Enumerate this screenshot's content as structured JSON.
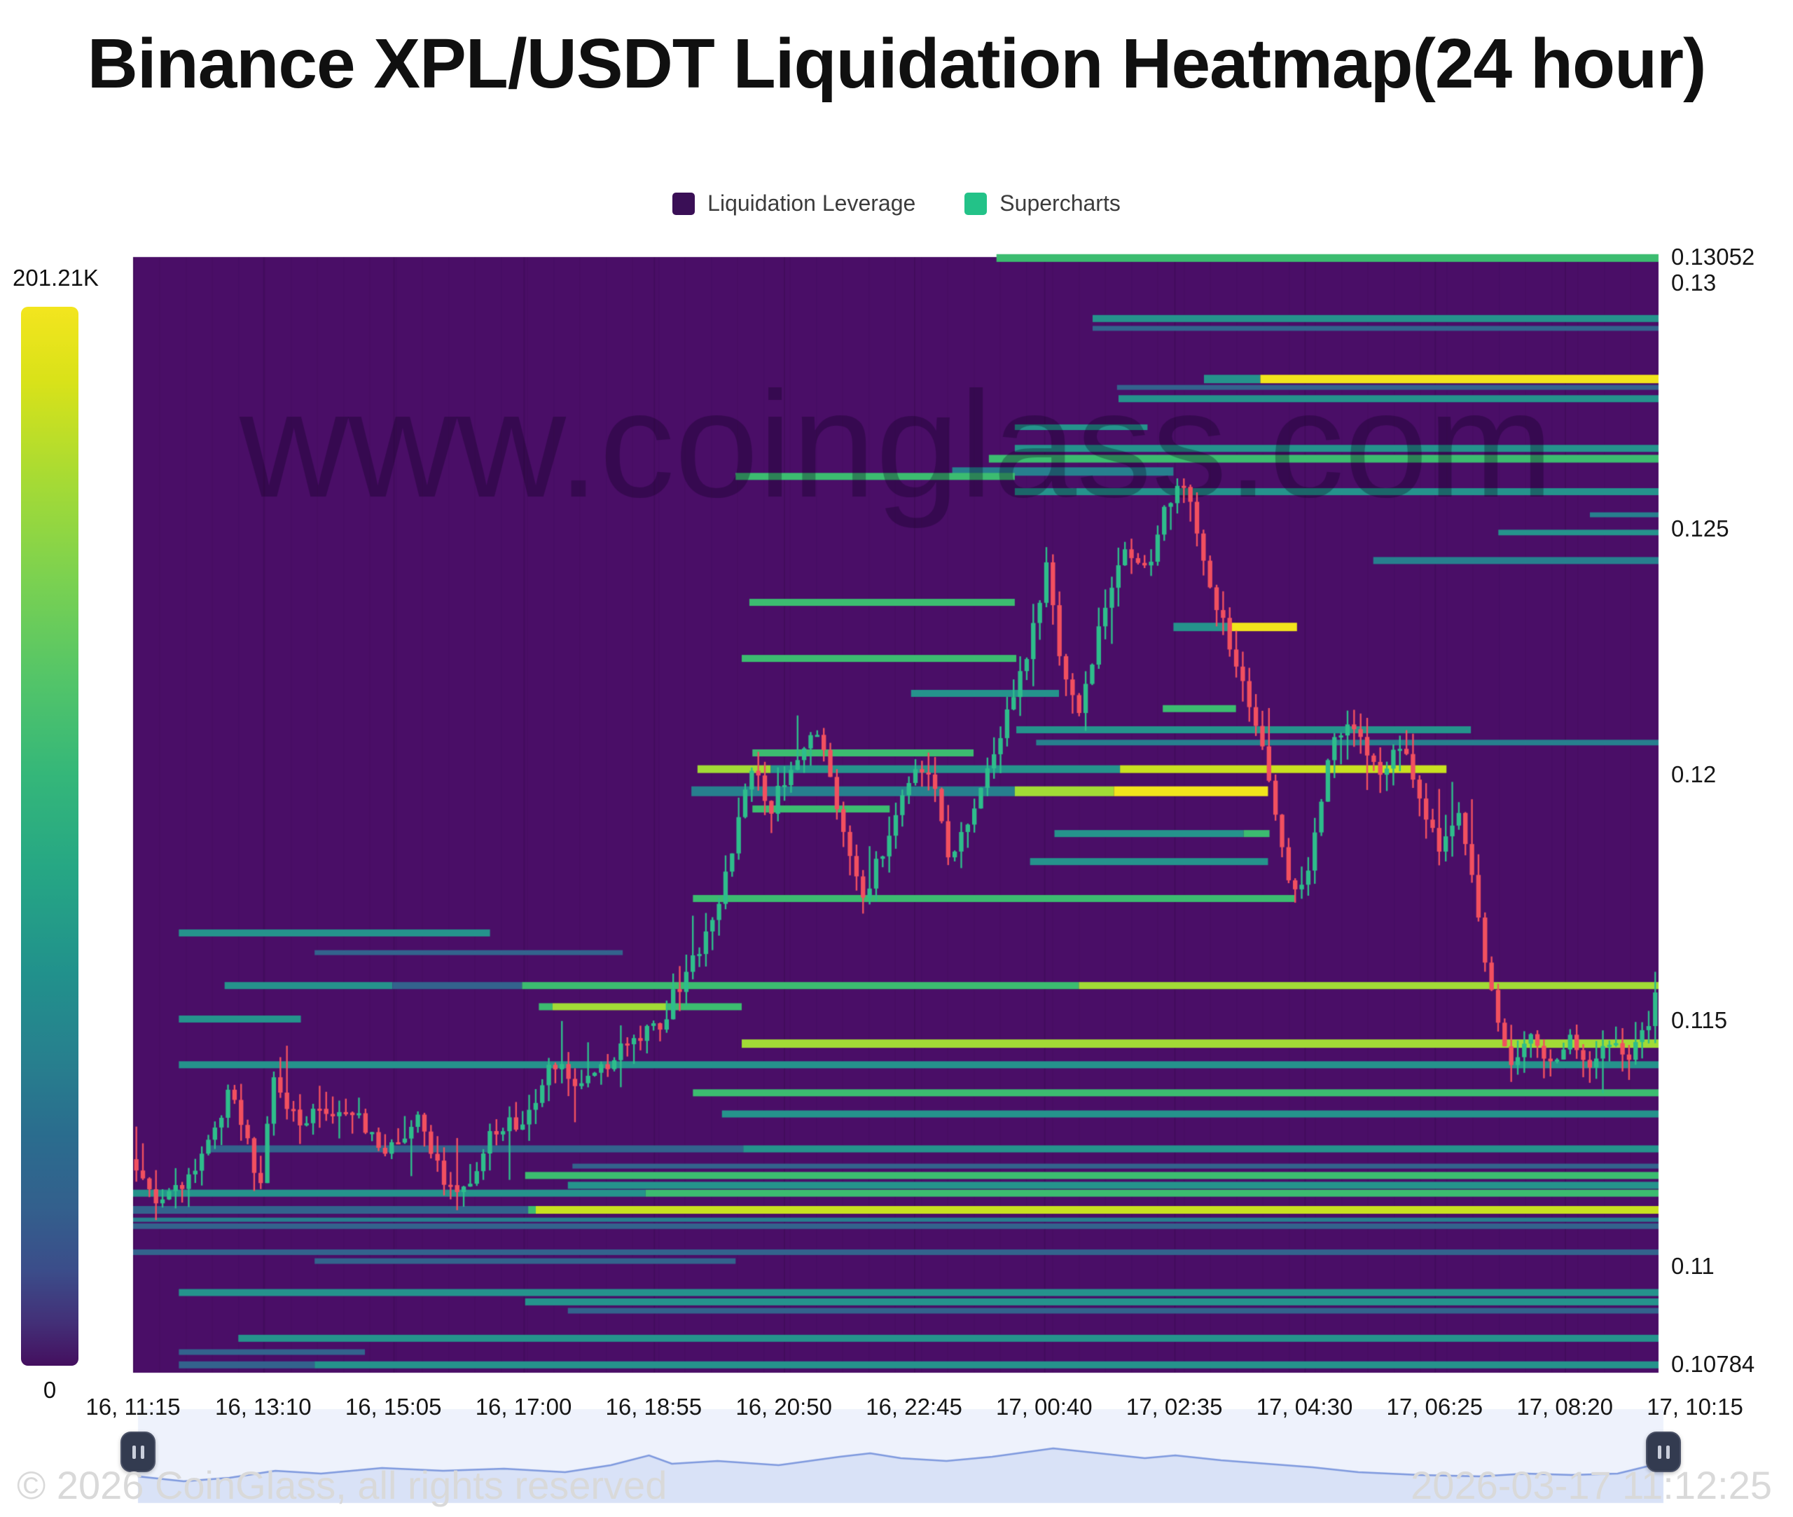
{
  "header": {
    "title": "Binance XPL/USDT Liquidation Heatmap(24 hour)"
  },
  "legend": {
    "items": [
      {
        "label": "Liquidation Leverage",
        "color": "#3a0f56"
      },
      {
        "label": "Supercharts",
        "color": "#23c288"
      }
    ]
  },
  "colorbar": {
    "max_label": "201.21K",
    "min_label": "0"
  },
  "watermark": "www.coinglass.com",
  "footer": {
    "left": "© 2026 CoinGlass, all rights reserved",
    "right": "2026-03-17 11:12:25"
  },
  "chart_data": {
    "type": "heatmap",
    "title": "Binance XPL/USDT Liquidation Heatmap(24 hour)",
    "background": "#4a0e67",
    "grid_line_color": "rgba(0,0,0,0.10)",
    "candle_up_color": "#2ebd8b",
    "candle_down_color": "#f2505f",
    "watermark_color": "rgba(10,0,25,0.30)",
    "y_axis": {
      "min": 0.10784,
      "max": 0.13052,
      "ticks": [
        {
          "label": "0.13052",
          "value": 0.13052
        },
        {
          "label": "0.13",
          "value": 0.13
        },
        {
          "label": "0.125",
          "value": 0.125
        },
        {
          "label": "0.12",
          "value": 0.12
        },
        {
          "label": "0.115",
          "value": 0.115
        },
        {
          "label": "0.11",
          "value": 0.11
        },
        {
          "label": "0.10784",
          "value": 0.10784
        }
      ]
    },
    "x_axis": {
      "ticks": [
        "16, 11:15",
        "16, 13:10",
        "16, 15:05",
        "16, 17:00",
        "16, 18:55",
        "16, 20:50",
        "16, 22:45",
        "17, 00:40",
        "17, 02:35",
        "17, 04:30",
        "17, 06:25",
        "17, 08:20",
        "17, 10:15"
      ]
    },
    "colorbar": {
      "min": 0,
      "max_label": "201.21K"
    },
    "palette": {
      "blue": "#33638d",
      "dteal": "#277f8e",
      "teal": "#25938c",
      "green": "#3cbc70",
      "lgreen": "#a2db36",
      "ygreen": "#c9e120",
      "yellow": "#f2e41c"
    },
    "liquidation_lines": [
      {
        "p": 0.1305,
        "h": 11,
        "s": [
          [
            0.566,
            1,
            "green"
          ]
        ]
      },
      {
        "p": 0.12927,
        "h": 10,
        "s": [
          [
            0.629,
            1,
            "teal"
          ]
        ]
      },
      {
        "p": 0.12907,
        "h": 7,
        "s": [
          [
            0.629,
            1,
            "blue"
          ]
        ]
      },
      {
        "p": 0.12804,
        "h": 12,
        "s": [
          [
            0.702,
            0.739,
            "teal"
          ],
          [
            0.739,
            1,
            "yellow"
          ]
        ]
      },
      {
        "p": 0.12787,
        "h": 7,
        "s": [
          [
            0.645,
            1,
            "blue"
          ]
        ]
      },
      {
        "p": 0.12764,
        "h": 10,
        "s": [
          [
            0.646,
            1,
            "teal"
          ]
        ]
      },
      {
        "p": 0.12706,
        "h": 8,
        "s": [
          [
            0.578,
            0.665,
            "teal"
          ]
        ]
      },
      {
        "p": 0.12663,
        "h": 10,
        "s": [
          [
            0.578,
            1,
            "teal"
          ]
        ]
      },
      {
        "p": 0.12642,
        "h": 11,
        "s": [
          [
            0.561,
            1,
            "green"
          ]
        ]
      },
      {
        "p": 0.12616,
        "h": 12,
        "s": [
          [
            0.537,
            0.682,
            "dteal"
          ]
        ]
      },
      {
        "p": 0.12606,
        "h": 10,
        "s": [
          [
            0.395,
            0.578,
            "green"
          ]
        ]
      },
      {
        "p": 0.12575,
        "h": 10,
        "s": [
          [
            0.578,
            1,
            "teal"
          ]
        ]
      },
      {
        "p": 0.12528,
        "h": 7,
        "s": [
          [
            0.955,
            1,
            "dteal"
          ]
        ]
      },
      {
        "p": 0.12492,
        "h": 8,
        "s": [
          [
            0.895,
            1,
            "teal"
          ]
        ]
      },
      {
        "p": 0.12435,
        "h": 10,
        "s": [
          [
            0.813,
            1,
            "dteal"
          ]
        ]
      },
      {
        "p": 0.1235,
        "h": 10,
        "s": [
          [
            0.404,
            0.578,
            "green"
          ]
        ]
      },
      {
        "p": 0.123,
        "h": 12,
        "s": [
          [
            0.682,
            0.719,
            "teal"
          ],
          [
            0.719,
            0.763,
            "yellow"
          ]
        ]
      },
      {
        "p": 0.12236,
        "h": 10,
        "s": [
          [
            0.399,
            0.579,
            "green"
          ]
        ]
      },
      {
        "p": 0.12165,
        "h": 10,
        "s": [
          [
            0.51,
            0.607,
            "teal"
          ]
        ]
      },
      {
        "p": 0.12134,
        "h": 10,
        "s": [
          [
            0.675,
            0.723,
            "green"
          ]
        ]
      },
      {
        "p": 0.12091,
        "h": 10,
        "s": [
          [
            0.579,
            0.877,
            "teal"
          ]
        ]
      },
      {
        "p": 0.12065,
        "h": 8,
        "s": [
          [
            0.592,
            1,
            "dteal"
          ]
        ]
      },
      {
        "p": 0.12044,
        "h": 10,
        "s": [
          [
            0.406,
            0.551,
            "green"
          ]
        ]
      },
      {
        "p": 0.12011,
        "h": 11,
        "s": [
          [
            0.37,
            0.418,
            "lgreen"
          ],
          [
            0.418,
            0.647,
            "teal"
          ],
          [
            0.647,
            0.861,
            "ygreen"
          ]
        ]
      },
      {
        "p": 0.11966,
        "h": 14,
        "s": [
          [
            0.366,
            0.578,
            "dteal"
          ],
          [
            0.578,
            0.643,
            "lgreen"
          ],
          [
            0.643,
            0.744,
            "yellow"
          ]
        ]
      },
      {
        "p": 0.1193,
        "h": 10,
        "s": [
          [
            0.406,
            0.496,
            "green"
          ]
        ]
      },
      {
        "p": 0.1188,
        "h": 10,
        "s": [
          [
            0.604,
            0.728,
            "teal"
          ],
          [
            0.728,
            0.745,
            "green"
          ]
        ]
      },
      {
        "p": 0.11823,
        "h": 10,
        "s": [
          [
            0.588,
            0.744,
            "teal"
          ]
        ]
      },
      {
        "p": 0.11748,
        "h": 10,
        "s": [
          [
            0.367,
            0.762,
            "green"
          ]
        ]
      },
      {
        "p": 0.11678,
        "h": 10,
        "s": [
          [
            0.03,
            0.234,
            "teal"
          ]
        ]
      },
      {
        "p": 0.11638,
        "h": 7,
        "s": [
          [
            0.119,
            0.321,
            "blue"
          ]
        ]
      },
      {
        "p": 0.11571,
        "h": 10,
        "s": [
          [
            0.06,
            0.17,
            "teal"
          ],
          [
            0.17,
            0.255,
            "blue"
          ],
          [
            0.255,
            0.62,
            "green"
          ],
          [
            0.62,
            1,
            "lgreen"
          ]
        ]
      },
      {
        "p": 0.11528,
        "h": 10,
        "s": [
          [
            0.266,
            0.275,
            "green"
          ],
          [
            0.275,
            0.35,
            "lgreen"
          ],
          [
            0.35,
            0.399,
            "green"
          ]
        ]
      },
      {
        "p": 0.11503,
        "h": 10,
        "s": [
          [
            0.03,
            0.11,
            "teal"
          ]
        ]
      },
      {
        "p": 0.11453,
        "h": 12,
        "s": [
          [
            0.399,
            1,
            "lgreen"
          ]
        ]
      },
      {
        "p": 0.1141,
        "h": 10,
        "s": [
          [
            0.03,
            1,
            "teal"
          ]
        ]
      },
      {
        "p": 0.11353,
        "h": 10,
        "s": [
          [
            0.367,
            1,
            "green"
          ]
        ]
      },
      {
        "p": 0.1131,
        "h": 10,
        "s": [
          [
            0.386,
            1,
            "teal"
          ]
        ]
      },
      {
        "p": 0.11239,
        "h": 10,
        "s": [
          [
            0.05,
            0.4,
            "blue"
          ],
          [
            0.4,
            1,
            "teal"
          ]
        ]
      },
      {
        "p": 0.11204,
        "h": 7,
        "s": [
          [
            0.288,
            1,
            "blue"
          ]
        ]
      },
      {
        "p": 0.11185,
        "h": 10,
        "s": [
          [
            0.257,
            1,
            "green"
          ]
        ]
      },
      {
        "p": 0.11165,
        "h": 10,
        "s": [
          [
            0.285,
            1,
            "teal"
          ]
        ]
      },
      {
        "p": 0.11149,
        "h": 10,
        "s": [
          [
            0.0,
            0.336,
            "teal"
          ],
          [
            0.336,
            1,
            "green"
          ]
        ]
      },
      {
        "p": 0.11115,
        "h": 11,
        "s": [
          [
            0.0,
            0.259,
            "blue"
          ],
          [
            0.259,
            0.264,
            "green"
          ],
          [
            0.264,
            1,
            "ygreen"
          ]
        ]
      },
      {
        "p": 0.11095,
        "h": 6,
        "s": [
          [
            0.0,
            1,
            "dteal"
          ]
        ]
      },
      {
        "p": 0.11082,
        "h": 8,
        "s": [
          [
            0.0,
            1,
            "blue"
          ]
        ]
      },
      {
        "p": 0.11029,
        "h": 8,
        "s": [
          [
            0.0,
            1,
            "blue"
          ]
        ]
      },
      {
        "p": 0.11011,
        "h": 8,
        "s": [
          [
            0.119,
            0.395,
            "blue"
          ]
        ]
      },
      {
        "p": 0.10947,
        "h": 10,
        "s": [
          [
            0.03,
            1,
            "teal"
          ]
        ]
      },
      {
        "p": 0.10928,
        "h": 10,
        "s": [
          [
            0.257,
            1,
            "teal"
          ]
        ]
      },
      {
        "p": 0.1091,
        "h": 8,
        "s": [
          [
            0.285,
            1,
            "blue"
          ]
        ]
      },
      {
        "p": 0.10854,
        "h": 10,
        "s": [
          [
            0.069,
            1,
            "teal"
          ]
        ]
      },
      {
        "p": 0.10826,
        "h": 8,
        "s": [
          [
            0.03,
            0.152,
            "blue"
          ]
        ]
      },
      {
        "p": 0.108,
        "h": 10,
        "s": [
          [
            0.03,
            0.119,
            "blue"
          ],
          [
            0.119,
            1,
            "teal"
          ]
        ]
      }
    ],
    "price_path": [
      [
        0.0,
        0.11218
      ],
      [
        0.016,
        0.11119
      ],
      [
        0.031,
        0.11154
      ],
      [
        0.041,
        0.11183
      ],
      [
        0.066,
        0.11354
      ],
      [
        0.078,
        0.11254
      ],
      [
        0.084,
        0.1114
      ],
      [
        0.094,
        0.11368
      ],
      [
        0.11,
        0.1129
      ],
      [
        0.129,
        0.11325
      ],
      [
        0.152,
        0.11297
      ],
      [
        0.17,
        0.11226
      ],
      [
        0.188,
        0.11311
      ],
      [
        0.202,
        0.11211
      ],
      [
        0.213,
        0.11126
      ],
      [
        0.23,
        0.11226
      ],
      [
        0.243,
        0.11297
      ],
      [
        0.257,
        0.11268
      ],
      [
        0.276,
        0.11425
      ],
      [
        0.294,
        0.11346
      ],
      [
        0.312,
        0.1141
      ],
      [
        0.331,
        0.11468
      ],
      [
        0.349,
        0.11503
      ],
      [
        0.365,
        0.11596
      ],
      [
        0.381,
        0.11695
      ],
      [
        0.397,
        0.11866
      ],
      [
        0.406,
        0.12037
      ],
      [
        0.418,
        0.11923
      ],
      [
        0.436,
        0.12023
      ],
      [
        0.45,
        0.12101
      ],
      [
        0.464,
        0.11937
      ],
      [
        0.48,
        0.11738
      ],
      [
        0.496,
        0.11866
      ],
      [
        0.514,
        0.1203
      ],
      [
        0.53,
        0.11966
      ],
      [
        0.537,
        0.11809
      ],
      [
        0.553,
        0.11937
      ],
      [
        0.569,
        0.12065
      ],
      [
        0.583,
        0.12208
      ],
      [
        0.597,
        0.12336
      ],
      [
        0.601,
        0.12421
      ],
      [
        0.611,
        0.12222
      ],
      [
        0.622,
        0.12137
      ],
      [
        0.636,
        0.12294
      ],
      [
        0.652,
        0.1245
      ],
      [
        0.666,
        0.12407
      ],
      [
        0.68,
        0.12557
      ],
      [
        0.691,
        0.12592
      ],
      [
        0.702,
        0.1245
      ],
      [
        0.714,
        0.12322
      ],
      [
        0.728,
        0.12208
      ],
      [
        0.739,
        0.12094
      ],
      [
        0.751,
        0.11923
      ],
      [
        0.762,
        0.11738
      ],
      [
        0.772,
        0.11809
      ],
      [
        0.785,
        0.12023
      ],
      [
        0.797,
        0.12122
      ],
      [
        0.808,
        0.12065
      ],
      [
        0.82,
        0.1198
      ],
      [
        0.831,
        0.12065
      ],
      [
        0.845,
        0.11966
      ],
      [
        0.859,
        0.11852
      ],
      [
        0.87,
        0.11937
      ],
      [
        0.882,
        0.11752
      ],
      [
        0.895,
        0.1151
      ],
      [
        0.907,
        0.11396
      ],
      [
        0.918,
        0.11482
      ],
      [
        0.93,
        0.11411
      ],
      [
        0.943,
        0.11468
      ],
      [
        0.957,
        0.11396
      ],
      [
        0.971,
        0.11453
      ],
      [
        0.982,
        0.11418
      ],
      [
        0.991,
        0.11468
      ],
      [
        1.0,
        0.11539
      ]
    ],
    "navigator": {
      "bg_color": "#eef2fc",
      "fill_color": "#d9e2f7",
      "line_color": "#7e99de",
      "path": [
        [
          0.0,
          2108
        ],
        [
          0.03,
          2115
        ],
        [
          0.06,
          2110
        ],
        [
          0.09,
          2100
        ],
        [
          0.12,
          2104
        ],
        [
          0.16,
          2096
        ],
        [
          0.2,
          2100
        ],
        [
          0.24,
          2097
        ],
        [
          0.28,
          2102
        ],
        [
          0.31,
          2092
        ],
        [
          0.335,
          2078
        ],
        [
          0.35,
          2090
        ],
        [
          0.38,
          2086
        ],
        [
          0.42,
          2092
        ],
        [
          0.46,
          2080
        ],
        [
          0.48,
          2075
        ],
        [
          0.5,
          2082
        ],
        [
          0.53,
          2086
        ],
        [
          0.56,
          2080
        ],
        [
          0.6,
          2068
        ],
        [
          0.63,
          2075
        ],
        [
          0.66,
          2082
        ],
        [
          0.68,
          2078
        ],
        [
          0.71,
          2085
        ],
        [
          0.74,
          2090
        ],
        [
          0.77,
          2095
        ],
        [
          0.8,
          2102
        ],
        [
          0.84,
          2106
        ],
        [
          0.88,
          2108
        ],
        [
          0.91,
          2104
        ],
        [
          0.94,
          2106
        ],
        [
          0.97,
          2104
        ],
        [
          1.0,
          2088
        ]
      ]
    }
  }
}
